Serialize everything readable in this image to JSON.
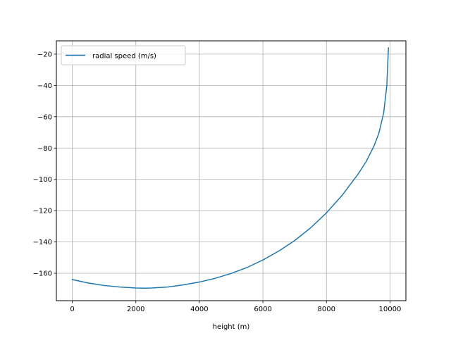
{
  "chart_data": {
    "type": "line",
    "title": "",
    "xlabel": "height (m)",
    "ylabel": "",
    "xlim": [
      -500,
      10500
    ],
    "ylim": [
      -177.5,
      -11.5
    ],
    "xticks": [
      0,
      2000,
      4000,
      6000,
      8000,
      10000
    ],
    "yticks": [
      -160,
      -140,
      -120,
      -100,
      -80,
      -60,
      -40,
      -20
    ],
    "grid": true,
    "legend_position": "top-left",
    "series": [
      {
        "name": "radial speed (m/s)",
        "color": "#1f77b4",
        "x": [
          0,
          500,
          1000,
          1500,
          2000,
          2300,
          2500,
          3000,
          3500,
          4000,
          4500,
          5000,
          5500,
          6000,
          6500,
          7000,
          7500,
          8000,
          8500,
          9000,
          9250,
          9500,
          9650,
          9800,
          9900,
          9950
        ],
        "y": [
          -164,
          -166.2,
          -167.8,
          -168.8,
          -169.4,
          -169.5,
          -169.4,
          -168.8,
          -167.4,
          -165.6,
          -163.2,
          -160.1,
          -156.3,
          -151.5,
          -145.8,
          -139.1,
          -131,
          -121.4,
          -110,
          -96.5,
          -88.6,
          -78.5,
          -70.5,
          -57.5,
          -40,
          -16
        ]
      }
    ]
  }
}
